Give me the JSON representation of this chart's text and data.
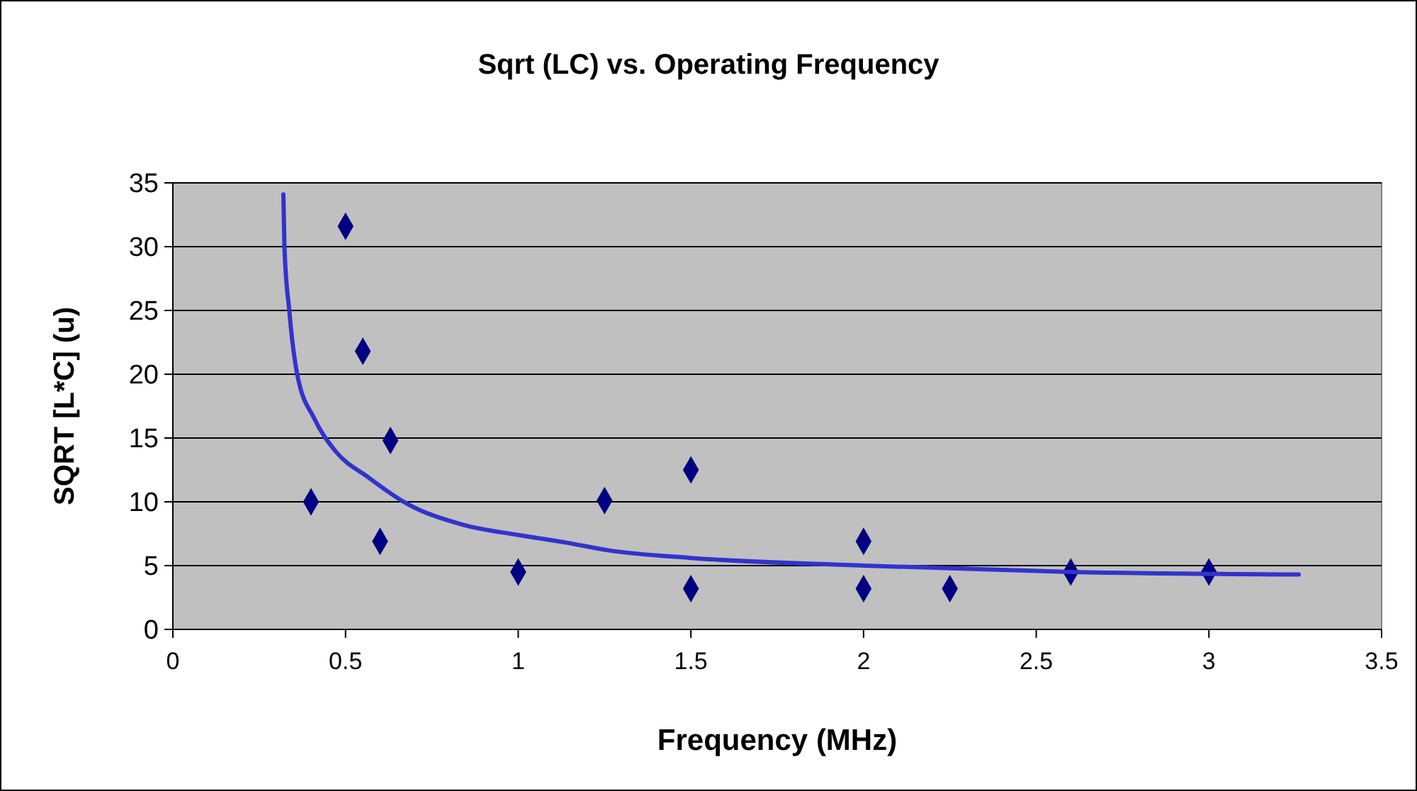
{
  "chart_data": {
    "type": "scatter",
    "title": "Sqrt (LC) vs. Operating Frequency",
    "xlabel": "Frequency (MHz)",
    "ylabel": "SQRT [L*C] (u)",
    "xlim": [
      0,
      3.5
    ],
    "xticks": [
      0,
      0.5,
      1,
      1.5,
      2,
      2.5,
      3,
      3.5
    ],
    "ylim": [
      0,
      35
    ],
    "yticks": [
      0,
      5,
      10,
      15,
      20,
      25,
      30,
      35
    ],
    "grid": "y",
    "series": [
      {
        "marker": "diamond",
        "color": "#000080",
        "x": [
          0.4,
          0.5,
          0.55,
          0.6,
          0.63,
          1,
          1.25,
          1.5,
          1.5,
          2,
          2,
          2.25,
          2.6,
          3
        ],
        "values": [
          10,
          31.6,
          21.8,
          6.9,
          14.8,
          4.5,
          10.1,
          12.5,
          3.2,
          6.9,
          3.2,
          3.2,
          4.5,
          4.5
        ]
      },
      {
        "type": "line",
        "line_style": "solid",
        "color": "#3333cc",
        "x": [
          0.32,
          0.323,
          0.337,
          0.36,
          0.41,
          0.47,
          0.567,
          0.675,
          0.84,
          1,
          1.14,
          1.26,
          1.5,
          2,
          2.6,
          3.26
        ],
        "values": [
          34.1,
          30,
          25,
          20,
          16.5,
          14,
          11.9,
          9.9,
          8.2,
          7.4,
          6.8,
          6.2,
          5.6,
          5,
          4.5,
          4.3
        ]
      }
    ]
  }
}
